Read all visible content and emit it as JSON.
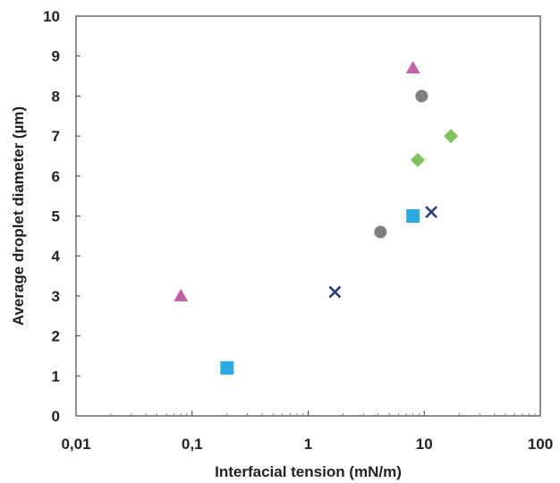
{
  "chart_data": {
    "type": "scatter",
    "xlabel": "Interfacial tension (mN/m)",
    "ylabel": "Average droplet diameter (µm)",
    "xscale": "log",
    "xlim": [
      0.01,
      100
    ],
    "ylim": [
      0,
      10
    ],
    "grid": false,
    "x_tick_labels": [
      "0,01",
      "0,1",
      "1",
      "10",
      "100"
    ],
    "y_tick_labels": [
      "0",
      "1",
      "2",
      "3",
      "4",
      "5",
      "6",
      "7",
      "8",
      "9",
      "10"
    ],
    "series": [
      {
        "marker": "triangle",
        "color": "#c45fa8",
        "points": [
          {
            "x": 0.08,
            "y": 3.0
          },
          {
            "x": 8.0,
            "y": 8.7
          }
        ]
      },
      {
        "marker": "square",
        "color": "#29abe2",
        "points": [
          {
            "x": 0.2,
            "y": 1.2
          },
          {
            "x": 8.0,
            "y": 5.0
          }
        ]
      },
      {
        "marker": "x",
        "color": "#2a3f7a",
        "points": [
          {
            "x": 1.7,
            "y": 3.1
          },
          {
            "x": 11.5,
            "y": 5.1
          }
        ]
      },
      {
        "marker": "circle",
        "color": "#7f7f7f",
        "points": [
          {
            "x": 4.2,
            "y": 4.6
          },
          {
            "x": 9.5,
            "y": 8.0
          }
        ]
      },
      {
        "marker": "diamond",
        "color": "#7dc35b",
        "points": [
          {
            "x": 8.8,
            "y": 6.4
          },
          {
            "x": 17.0,
            "y": 7.0
          }
        ]
      }
    ]
  }
}
